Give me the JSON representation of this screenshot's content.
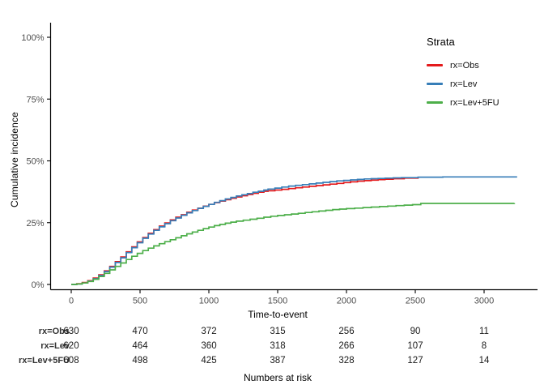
{
  "figure": {
    "background": "#ffffff"
  },
  "chart_data": {
    "type": "line",
    "subtype": "step-function-cumulative-incidence",
    "title": "",
    "xlabel": "Time-to-event",
    "ylabel": "Cumulative incidence",
    "xlim": [
      0,
      3300
    ],
    "ylim": [
      0,
      100
    ],
    "x_ticks": [
      0,
      500,
      1000,
      1500,
      2000,
      2500,
      3000
    ],
    "y_ticks": [
      {
        "value": 0,
        "label": "0%"
      },
      {
        "value": 25,
        "label": "25%"
      },
      {
        "value": 50,
        "label": "50%"
      },
      {
        "value": 75,
        "label": "75%"
      },
      {
        "value": 100,
        "label": "100%"
      }
    ],
    "grid": "off",
    "legend": {
      "title": "Strata",
      "position": "top-right",
      "entries": [
        {
          "label": "rx=Obs",
          "color": "#E41A1C"
        },
        {
          "label": "rx=Lev",
          "color": "#377EB8"
        },
        {
          "label": "rx=Lev+5FU",
          "color": "#4DAF4A"
        }
      ]
    },
    "series": [
      {
        "name": "rx=Obs",
        "color": "#E41A1C",
        "points": [
          [
            0,
            0
          ],
          [
            40,
            0.3
          ],
          [
            80,
            0.8
          ],
          [
            120,
            1.5
          ],
          [
            160,
            2.6
          ],
          [
            200,
            3.9
          ],
          [
            240,
            5.5
          ],
          [
            280,
            7.3
          ],
          [
            320,
            9.2
          ],
          [
            360,
            11.1
          ],
          [
            400,
            13.2
          ],
          [
            440,
            15.2
          ],
          [
            480,
            17.2
          ],
          [
            520,
            19.0
          ],
          [
            560,
            20.7
          ],
          [
            600,
            22.2
          ],
          [
            640,
            23.6
          ],
          [
            680,
            24.9
          ],
          [
            720,
            26.1
          ],
          [
            760,
            27.2
          ],
          [
            800,
            28.2
          ],
          [
            840,
            29.2
          ],
          [
            880,
            30.1
          ],
          [
            920,
            30.9
          ],
          [
            960,
            31.7
          ],
          [
            1000,
            32.4
          ],
          [
            1040,
            33.1
          ],
          [
            1080,
            33.7
          ],
          [
            1120,
            34.3
          ],
          [
            1160,
            34.9
          ],
          [
            1200,
            35.4
          ],
          [
            1240,
            35.9
          ],
          [
            1280,
            36.4
          ],
          [
            1320,
            36.9
          ],
          [
            1360,
            37.3
          ],
          [
            1400,
            37.7
          ],
          [
            1430,
            37.9
          ],
          [
            1480,
            38.2
          ],
          [
            1530,
            38.5
          ],
          [
            1580,
            38.8
          ],
          [
            1630,
            39.1
          ],
          [
            1680,
            39.4
          ],
          [
            1730,
            39.7
          ],
          [
            1780,
            40.0
          ],
          [
            1830,
            40.3
          ],
          [
            1880,
            40.6
          ],
          [
            1930,
            40.9
          ],
          [
            1980,
            41.2
          ],
          [
            2030,
            41.5
          ],
          [
            2080,
            41.8
          ],
          [
            2130,
            42.0
          ],
          [
            2180,
            42.2
          ],
          [
            2230,
            42.4
          ],
          [
            2280,
            42.6
          ],
          [
            2340,
            42.8
          ],
          [
            2420,
            43.0
          ],
          [
            2520,
            43.4
          ]
        ]
      },
      {
        "name": "rx=Lev",
        "color": "#377EB8",
        "points": [
          [
            0,
            0
          ],
          [
            40,
            0.2
          ],
          [
            80,
            0.6
          ],
          [
            120,
            1.3
          ],
          [
            160,
            2.3
          ],
          [
            200,
            3.6
          ],
          [
            240,
            5.2
          ],
          [
            280,
            7.0
          ],
          [
            320,
            8.9
          ],
          [
            360,
            10.8
          ],
          [
            400,
            12.9
          ],
          [
            440,
            14.9
          ],
          [
            480,
            16.9
          ],
          [
            520,
            18.7
          ],
          [
            560,
            20.4
          ],
          [
            600,
            21.9
          ],
          [
            640,
            23.3
          ],
          [
            680,
            24.6
          ],
          [
            720,
            25.8
          ],
          [
            760,
            26.9
          ],
          [
            800,
            28.0
          ],
          [
            840,
            29.0
          ],
          [
            880,
            29.9
          ],
          [
            920,
            30.8
          ],
          [
            960,
            31.6
          ],
          [
            1000,
            32.4
          ],
          [
            1040,
            33.2
          ],
          [
            1080,
            33.9
          ],
          [
            1120,
            34.6
          ],
          [
            1160,
            35.2
          ],
          [
            1200,
            35.8
          ],
          [
            1240,
            36.3
          ],
          [
            1280,
            36.8
          ],
          [
            1320,
            37.3
          ],
          [
            1360,
            37.7
          ],
          [
            1400,
            38.2
          ],
          [
            1430,
            38.6
          ],
          [
            1480,
            39.0
          ],
          [
            1530,
            39.4
          ],
          [
            1580,
            39.8
          ],
          [
            1630,
            40.1
          ],
          [
            1680,
            40.4
          ],
          [
            1730,
            40.7
          ],
          [
            1780,
            41.0
          ],
          [
            1830,
            41.3
          ],
          [
            1880,
            41.6
          ],
          [
            1930,
            41.9
          ],
          [
            1980,
            42.1
          ],
          [
            2030,
            42.3
          ],
          [
            2080,
            42.5
          ],
          [
            2130,
            42.7
          ],
          [
            2180,
            42.8
          ],
          [
            2230,
            42.9
          ],
          [
            2280,
            43.0
          ],
          [
            2340,
            43.1
          ],
          [
            2400,
            43.2
          ],
          [
            2520,
            43.4
          ],
          [
            2700,
            43.5
          ],
          [
            3240,
            43.5
          ]
        ]
      },
      {
        "name": "rx=Lev+5FU",
        "color": "#4DAF4A",
        "points": [
          [
            0,
            0
          ],
          [
            40,
            0.2
          ],
          [
            80,
            0.6
          ],
          [
            120,
            1.2
          ],
          [
            160,
            2.1
          ],
          [
            200,
            3.2
          ],
          [
            240,
            4.5
          ],
          [
            280,
            5.9
          ],
          [
            320,
            7.3
          ],
          [
            360,
            8.7
          ],
          [
            400,
            10.1
          ],
          [
            440,
            11.4
          ],
          [
            480,
            12.6
          ],
          [
            520,
            13.7
          ],
          [
            560,
            14.7
          ],
          [
            600,
            15.6
          ],
          [
            640,
            16.5
          ],
          [
            680,
            17.3
          ],
          [
            720,
            18.1
          ],
          [
            760,
            18.9
          ],
          [
            800,
            19.7
          ],
          [
            840,
            20.5
          ],
          [
            880,
            21.2
          ],
          [
            920,
            21.9
          ],
          [
            960,
            22.6
          ],
          [
            1000,
            23.2
          ],
          [
            1040,
            23.8
          ],
          [
            1080,
            24.3
          ],
          [
            1120,
            24.8
          ],
          [
            1160,
            25.2
          ],
          [
            1200,
            25.6
          ],
          [
            1250,
            26.0
          ],
          [
            1300,
            26.4
          ],
          [
            1350,
            26.8
          ],
          [
            1400,
            27.2
          ],
          [
            1450,
            27.6
          ],
          [
            1500,
            27.9
          ],
          [
            1550,
            28.2
          ],
          [
            1600,
            28.5
          ],
          [
            1650,
            28.8
          ],
          [
            1700,
            29.1
          ],
          [
            1750,
            29.4
          ],
          [
            1800,
            29.7
          ],
          [
            1850,
            30.0
          ],
          [
            1900,
            30.3
          ],
          [
            1950,
            30.5
          ],
          [
            2000,
            30.7
          ],
          [
            2060,
            30.9
          ],
          [
            2120,
            31.1
          ],
          [
            2180,
            31.3
          ],
          [
            2240,
            31.5
          ],
          [
            2300,
            31.7
          ],
          [
            2360,
            31.9
          ],
          [
            2420,
            32.1
          ],
          [
            2480,
            32.3
          ],
          [
            2540,
            32.8
          ],
          [
            2900,
            32.8
          ],
          [
            3220,
            32.9
          ]
        ]
      }
    ],
    "risk_table": {
      "caption": "Numbers at risk",
      "times": [
        0,
        500,
        1000,
        1500,
        2000,
        2500,
        3000
      ],
      "rows": [
        {
          "label": "rx=Obs",
          "counts": [
            630,
            470,
            372,
            315,
            256,
            90,
            11
          ]
        },
        {
          "label": "rx=Lev",
          "counts": [
            620,
            464,
            360,
            318,
            266,
            107,
            8
          ]
        },
        {
          "label": "rx=Lev+5FU",
          "counts": [
            608,
            498,
            425,
            387,
            328,
            127,
            14
          ]
        }
      ]
    },
    "style": {
      "axis_color": "#000000",
      "tick_label_color": "#4d4d4d",
      "risk_label_color": "#333333",
      "risk_number_color": "#1a1a1a"
    }
  }
}
